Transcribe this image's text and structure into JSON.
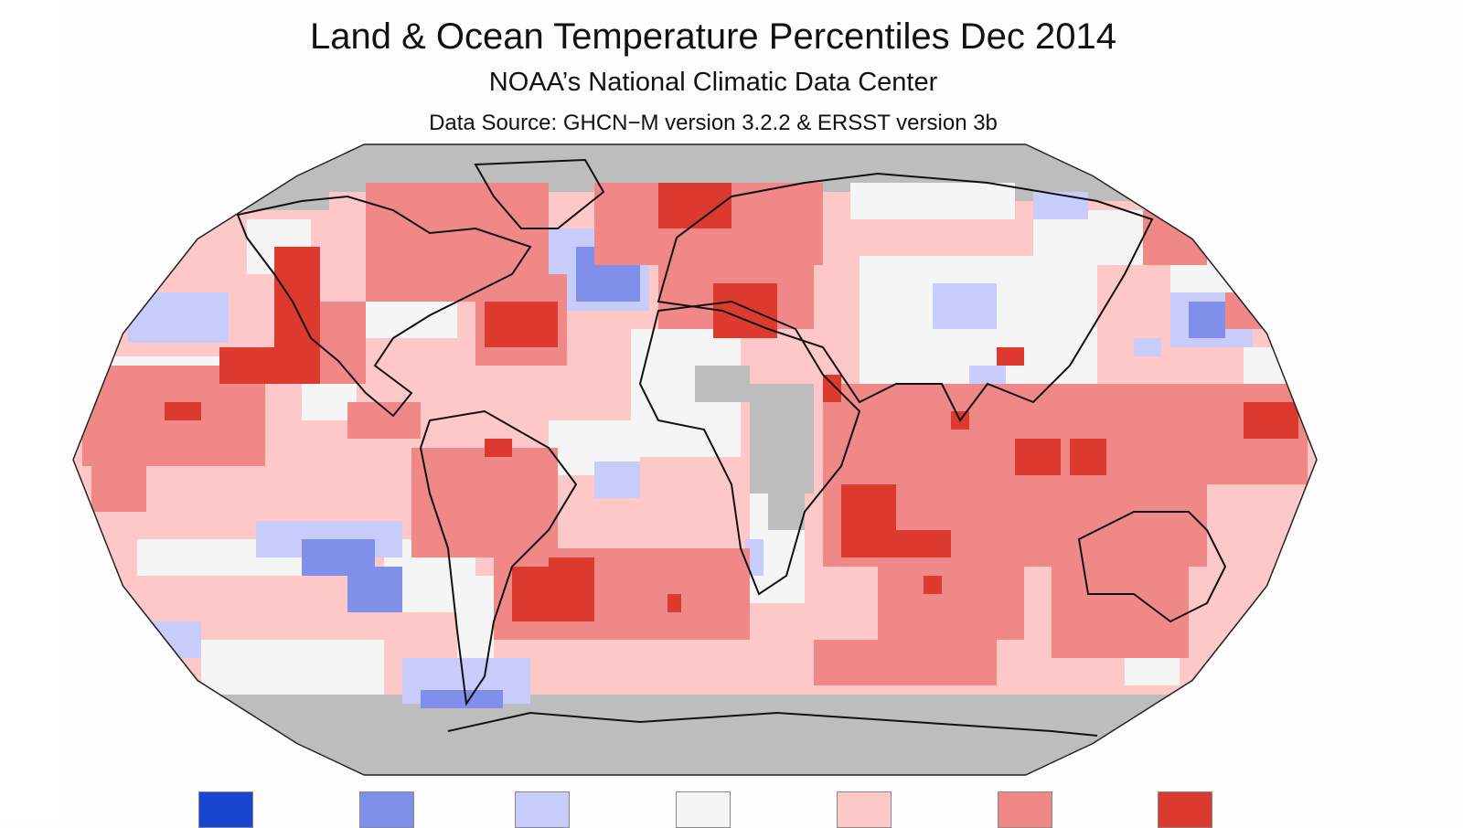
{
  "title": "Land & Ocean Temperature Percentiles Dec 2014",
  "subtitle": "NOAA’s National Climatic Data Center",
  "source": "Data Source: GHCN−M version 3.2.2 & ERSST version 3b",
  "projection": "Robinson",
  "legend": {
    "colors": [
      "#1a45d0",
      "#8090ea",
      "#c8ccfa",
      "#f5f5f5",
      "#ffc8c8",
      "#f08888",
      "#dc3a2e"
    ],
    "no_data_color": "#bdbdbd"
  }
}
